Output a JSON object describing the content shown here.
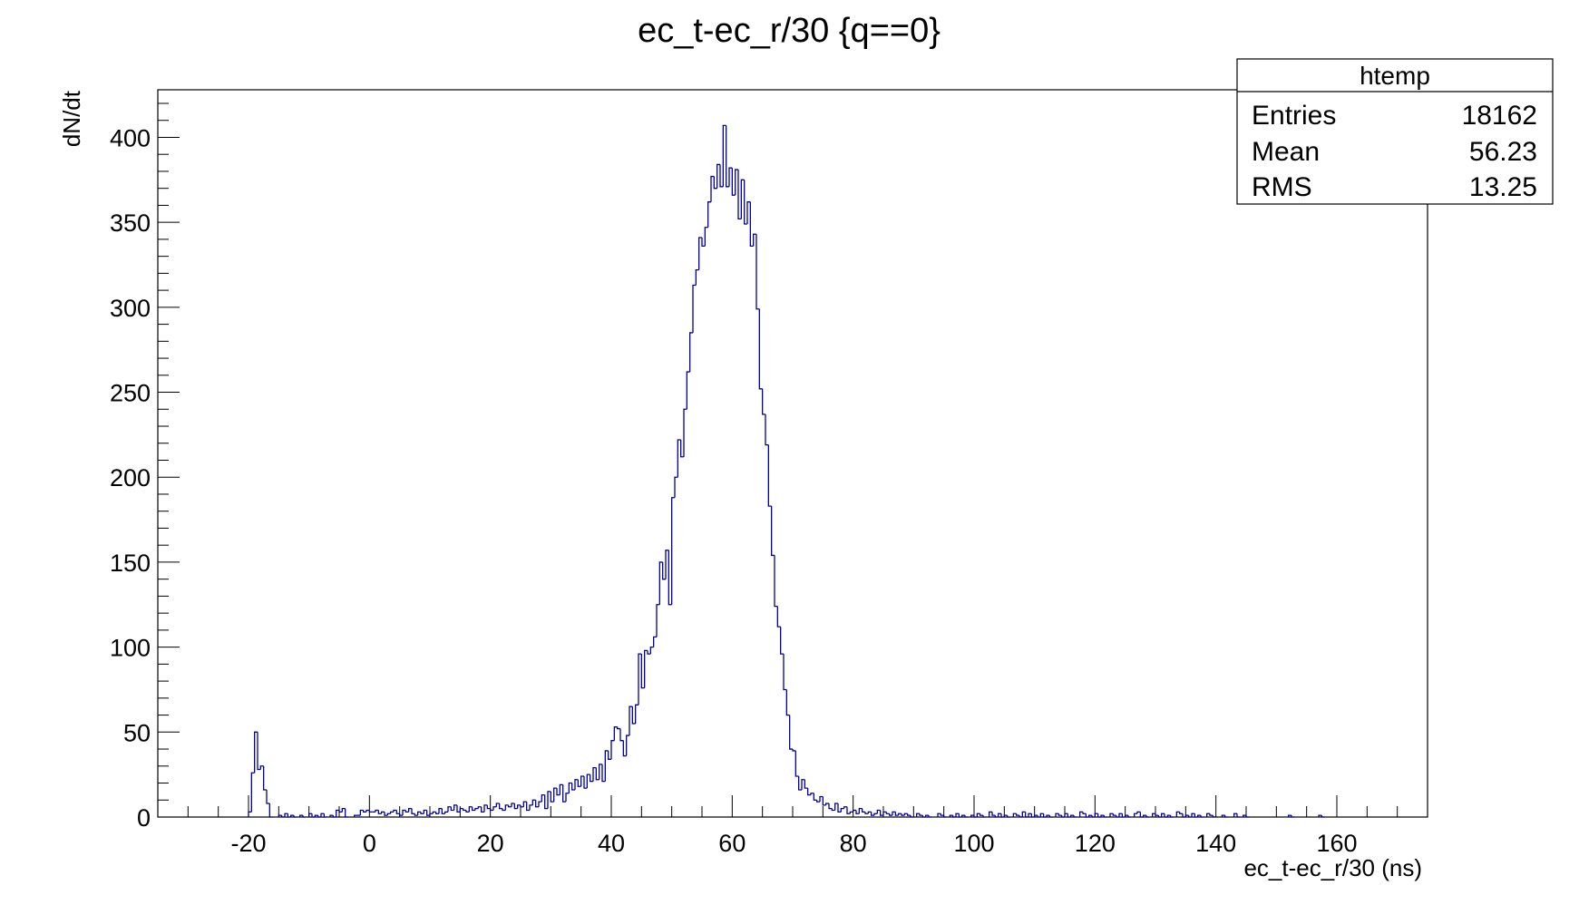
{
  "chart_data": {
    "type": "bar",
    "subtype": "histogram-step",
    "title": "ec_t-ec_r/30 {q==0}",
    "xlabel": "ec_t-ec_r/30 (ns)",
    "ylabel": "dN/dt",
    "xlim": [
      -35,
      175
    ],
    "ylim": [
      0,
      428
    ],
    "x_ticks": [
      -20,
      0,
      20,
      40,
      60,
      80,
      100,
      120,
      140,
      160
    ],
    "y_ticks": [
      0,
      50,
      100,
      150,
      200,
      250,
      300,
      350,
      400
    ],
    "x_minor_step": 5,
    "y_minor_step": 10,
    "grid": false,
    "line_color": "#000099",
    "bin_width": 0.5,
    "bins": [
      [
        -20.0,
        3
      ],
      [
        -19.5,
        26
      ],
      [
        -19.0,
        50
      ],
      [
        -18.5,
        28
      ],
      [
        -18.0,
        30
      ],
      [
        -17.5,
        16
      ],
      [
        -17.0,
        8
      ],
      [
        -15.0,
        1
      ],
      [
        -14.0,
        2
      ],
      [
        -13.0,
        1
      ],
      [
        -11.5,
        1
      ],
      [
        -10.0,
        2
      ],
      [
        -9.0,
        1
      ],
      [
        -8.0,
        2
      ],
      [
        -6.5,
        1
      ],
      [
        -5.5,
        4
      ],
      [
        -5.0,
        3
      ],
      [
        -4.5,
        5
      ],
      [
        -2.5,
        1
      ],
      [
        -2.0,
        1
      ],
      [
        -1.5,
        4
      ],
      [
        -1.0,
        3
      ],
      [
        -0.5,
        4
      ],
      [
        0.0,
        3
      ],
      [
        0.5,
        3
      ],
      [
        1.0,
        4
      ],
      [
        1.5,
        2
      ],
      [
        2.0,
        3
      ],
      [
        2.5,
        1
      ],
      [
        3.0,
        2
      ],
      [
        3.5,
        3
      ],
      [
        4.0,
        4
      ],
      [
        4.5,
        2
      ],
      [
        5.0,
        1
      ],
      [
        5.5,
        4
      ],
      [
        6.0,
        3
      ],
      [
        6.5,
        5
      ],
      [
        7.0,
        2
      ],
      [
        7.5,
        1
      ],
      [
        8.0,
        3
      ],
      [
        8.5,
        2
      ],
      [
        9.0,
        4
      ],
      [
        9.5,
        1
      ],
      [
        10.0,
        2
      ],
      [
        10.5,
        3
      ],
      [
        11.0,
        2
      ],
      [
        11.5,
        5
      ],
      [
        12.0,
        2
      ],
      [
        12.5,
        3
      ],
      [
        13.0,
        6
      ],
      [
        13.5,
        4
      ],
      [
        14.0,
        7
      ],
      [
        14.5,
        3
      ],
      [
        15.0,
        5
      ],
      [
        15.5,
        4
      ],
      [
        16.0,
        3
      ],
      [
        16.5,
        6
      ],
      [
        17.0,
        4
      ],
      [
        17.5,
        5
      ],
      [
        18.0,
        6
      ],
      [
        18.5,
        3
      ],
      [
        19.0,
        7
      ],
      [
        19.5,
        5
      ],
      [
        20.0,
        4
      ],
      [
        20.5,
        6
      ],
      [
        21.0,
        8
      ],
      [
        21.5,
        5
      ],
      [
        22.0,
        4
      ],
      [
        22.5,
        7
      ],
      [
        23.0,
        6
      ],
      [
        23.5,
        8
      ],
      [
        24.0,
        5
      ],
      [
        24.5,
        7
      ],
      [
        25.0,
        6
      ],
      [
        25.5,
        9
      ],
      [
        26.0,
        4
      ],
      [
        26.5,
        7
      ],
      [
        27.0,
        10
      ],
      [
        27.5,
        6
      ],
      [
        28.0,
        9
      ],
      [
        28.5,
        13
      ],
      [
        29.0,
        5
      ],
      [
        29.5,
        15
      ],
      [
        30.0,
        9
      ],
      [
        30.5,
        17
      ],
      [
        31.0,
        13
      ],
      [
        31.5,
        19
      ],
      [
        32.0,
        9
      ],
      [
        32.5,
        14
      ],
      [
        33.0,
        20
      ],
      [
        33.5,
        16
      ],
      [
        34.0,
        22
      ],
      [
        34.5,
        18
      ],
      [
        35.0,
        24
      ],
      [
        35.5,
        17
      ],
      [
        36.0,
        25
      ],
      [
        36.5,
        21
      ],
      [
        37.0,
        29
      ],
      [
        37.5,
        22
      ],
      [
        38.0,
        31
      ],
      [
        38.5,
        21
      ],
      [
        39.0,
        39
      ],
      [
        39.5,
        34
      ],
      [
        40.0,
        45
      ],
      [
        40.5,
        53
      ],
      [
        41.0,
        52
      ],
      [
        41.5,
        45
      ],
      [
        42.0,
        36
      ],
      [
        42.5,
        48
      ],
      [
        43.0,
        65
      ],
      [
        43.5,
        55
      ],
      [
        44.0,
        66
      ],
      [
        44.5,
        96
      ],
      [
        45.0,
        76
      ],
      [
        45.5,
        98
      ],
      [
        46.0,
        96
      ],
      [
        46.5,
        100
      ],
      [
        47.0,
        106
      ],
      [
        47.5,
        125
      ],
      [
        48.0,
        150
      ],
      [
        48.5,
        140
      ],
      [
        49.0,
        157
      ],
      [
        49.5,
        125
      ],
      [
        50.0,
        188
      ],
      [
        50.5,
        200
      ],
      [
        51.0,
        222
      ],
      [
        51.5,
        212
      ],
      [
        52.0,
        240
      ],
      [
        52.5,
        262
      ],
      [
        53.0,
        285
      ],
      [
        53.5,
        313
      ],
      [
        54.0,
        322
      ],
      [
        54.5,
        341
      ],
      [
        55.0,
        336
      ],
      [
        55.5,
        347
      ],
      [
        56.0,
        362
      ],
      [
        56.5,
        377
      ],
      [
        57.0,
        370
      ],
      [
        57.5,
        384
      ],
      [
        58.0,
        371
      ],
      [
        58.5,
        407
      ],
      [
        59.0,
        371
      ],
      [
        59.5,
        382
      ],
      [
        60.0,
        366
      ],
      [
        60.5,
        381
      ],
      [
        61.0,
        352
      ],
      [
        61.5,
        375
      ],
      [
        62.0,
        349
      ],
      [
        62.5,
        362
      ],
      [
        63.0,
        336
      ],
      [
        63.5,
        343
      ],
      [
        64.0,
        299
      ],
      [
        64.5,
        252
      ],
      [
        65.0,
        237
      ],
      [
        65.5,
        219
      ],
      [
        66.0,
        183
      ],
      [
        66.5,
        154
      ],
      [
        67.0,
        124
      ],
      [
        67.5,
        112
      ],
      [
        68.0,
        96
      ],
      [
        68.5,
        75
      ],
      [
        69.0,
        60
      ],
      [
        69.5,
        40
      ],
      [
        70.0,
        39
      ],
      [
        70.5,
        24
      ],
      [
        71.0,
        16
      ],
      [
        71.5,
        22
      ],
      [
        72.0,
        17
      ],
      [
        72.5,
        13
      ],
      [
        73.0,
        14
      ],
      [
        73.5,
        10
      ],
      [
        74.0,
        9
      ],
      [
        74.5,
        12
      ],
      [
        75.0,
        7
      ],
      [
        75.5,
        8
      ],
      [
        76.0,
        5
      ],
      [
        76.5,
        4
      ],
      [
        77.0,
        8
      ],
      [
        77.5,
        3
      ],
      [
        78.0,
        5
      ],
      [
        78.5,
        6
      ],
      [
        79.0,
        2
      ],
      [
        79.5,
        3
      ],
      [
        80.0,
        4
      ],
      [
        80.5,
        2
      ],
      [
        81.0,
        5
      ],
      [
        81.5,
        3
      ],
      [
        82.0,
        2
      ],
      [
        82.5,
        3
      ],
      [
        83.0,
        1
      ],
      [
        83.5,
        2
      ],
      [
        84.0,
        4
      ],
      [
        84.5,
        1
      ],
      [
        85.0,
        3
      ],
      [
        85.5,
        2
      ],
      [
        86.0,
        1
      ],
      [
        86.5,
        3
      ],
      [
        87.0,
        1
      ],
      [
        87.5,
        2
      ],
      [
        88.0,
        1
      ],
      [
        88.5,
        2
      ],
      [
        89.0,
        1
      ],
      [
        90.5,
        2
      ],
      [
        91.0,
        1
      ],
      [
        92.0,
        1
      ],
      [
        94.0,
        2
      ],
      [
        94.5,
        1
      ],
      [
        96.0,
        1
      ],
      [
        97.0,
        2
      ],
      [
        98.0,
        1
      ],
      [
        99.5,
        1
      ],
      [
        100.5,
        2
      ],
      [
        101.0,
        1
      ],
      [
        102.5,
        3
      ],
      [
        103.0,
        1
      ],
      [
        104.0,
        2
      ],
      [
        105.0,
        1
      ],
      [
        106.5,
        2
      ],
      [
        107.0,
        1
      ],
      [
        108.0,
        3
      ],
      [
        109.0,
        2
      ],
      [
        110.0,
        1
      ],
      [
        111.0,
        2
      ],
      [
        112.0,
        1
      ],
      [
        113.5,
        2
      ],
      [
        114.0,
        1
      ],
      [
        115.0,
        2
      ],
      [
        116.0,
        1
      ],
      [
        117.5,
        3
      ],
      [
        118.0,
        2
      ],
      [
        119.0,
        1
      ],
      [
        120.0,
        2
      ],
      [
        121.0,
        1
      ],
      [
        122.5,
        2
      ],
      [
        123.0,
        1
      ],
      [
        124.0,
        2
      ],
      [
        125.0,
        1
      ],
      [
        126.5,
        2
      ],
      [
        127.0,
        3
      ],
      [
        128.0,
        1
      ],
      [
        129.5,
        2
      ],
      [
        130.0,
        1
      ],
      [
        131.0,
        2
      ],
      [
        132.0,
        1
      ],
      [
        133.5,
        3
      ],
      [
        134.0,
        2
      ],
      [
        135.0,
        1
      ],
      [
        136.0,
        2
      ],
      [
        137.0,
        1
      ],
      [
        138.5,
        2
      ],
      [
        139.0,
        1
      ],
      [
        141.0,
        1
      ],
      [
        143.0,
        2
      ],
      [
        144.5,
        1
      ],
      [
        152.0,
        1
      ],
      [
        157.0,
        1
      ]
    ]
  },
  "stats_box": {
    "title": "htemp",
    "entries_label": "Entries",
    "entries_value": "18162",
    "mean_label": "Mean",
    "mean_value": "56.23",
    "rms_label": "RMS",
    "rms_value": "13.25"
  }
}
